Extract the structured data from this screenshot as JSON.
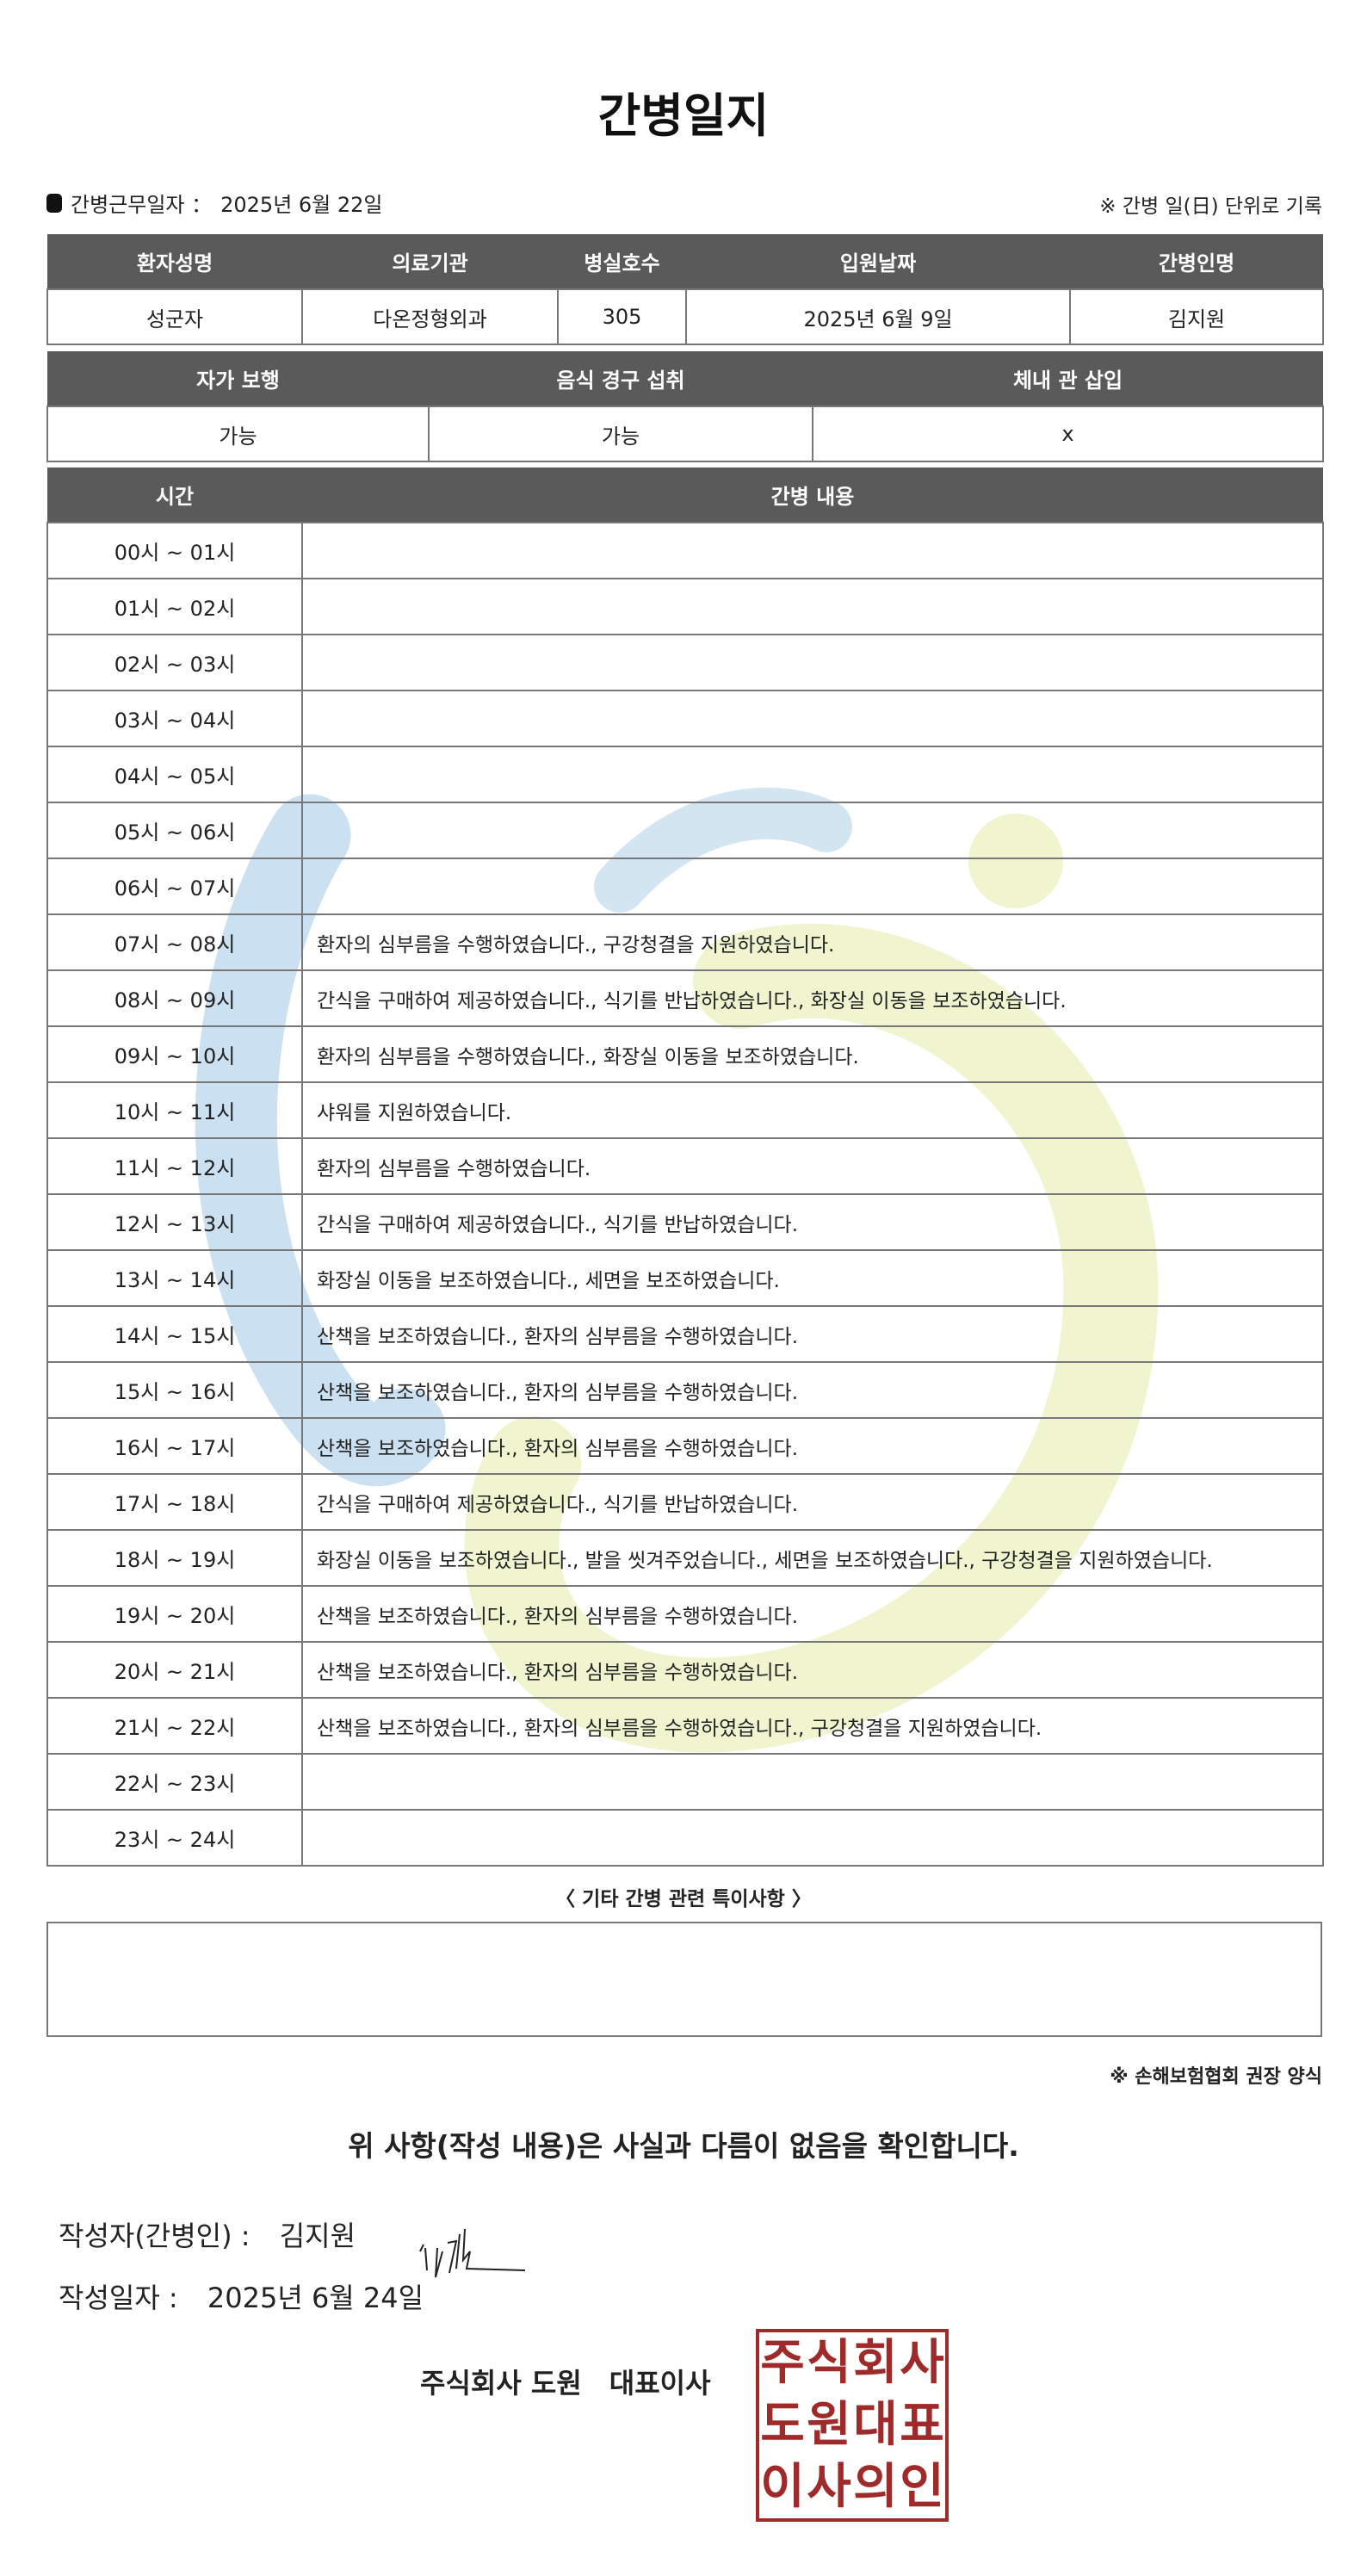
{
  "title": "간병일지",
  "work_date": {
    "label": "간병근무일자 ：",
    "value": "2025년 6월 22일"
  },
  "unit_note": "※ 간병 일(日) 단위로 기록",
  "patient_table": {
    "headers": [
      "환자성명",
      "의료기관",
      "병실호수",
      "입원날짜",
      "간병인명"
    ],
    "values": [
      "성군자",
      "다온정형외과",
      "305",
      "2025년 6월 9일",
      "김지원"
    ]
  },
  "status_table": {
    "headers": [
      "자가 보행",
      "음식 경구 섭취",
      "체내 관 삽입"
    ],
    "values": [
      "가능",
      "가능",
      "x"
    ]
  },
  "care_table": {
    "headers": [
      "시간",
      "간병 내용"
    ],
    "rows": [
      {
        "time": "00시 ~ 01시",
        "content": ""
      },
      {
        "time": "01시 ~ 02시",
        "content": ""
      },
      {
        "time": "02시 ~ 03시",
        "content": ""
      },
      {
        "time": "03시 ~ 04시",
        "content": ""
      },
      {
        "time": "04시 ~ 05시",
        "content": ""
      },
      {
        "time": "05시 ~ 06시",
        "content": ""
      },
      {
        "time": "06시 ~ 07시",
        "content": ""
      },
      {
        "time": "07시 ~ 08시",
        "content": "환자의 심부름을 수행하였습니다., 구강청결을 지원하였습니다."
      },
      {
        "time": "08시 ~ 09시",
        "content": "간식을 구매하여 제공하였습니다., 식기를 반납하였습니다., 화장실 이동을 보조하였습니다."
      },
      {
        "time": "09시 ~ 10시",
        "content": "환자의 심부름을 수행하였습니다., 화장실 이동을 보조하였습니다."
      },
      {
        "time": "10시 ~ 11시",
        "content": "샤워를 지원하였습니다."
      },
      {
        "time": "11시 ~ 12시",
        "content": "환자의 심부름을 수행하였습니다."
      },
      {
        "time": "12시 ~ 13시",
        "content": "간식을 구매하여 제공하였습니다., 식기를 반납하였습니다."
      },
      {
        "time": "13시 ~ 14시",
        "content": "화장실 이동을 보조하였습니다., 세면을 보조하였습니다."
      },
      {
        "time": "14시 ~ 15시",
        "content": "산책을 보조하였습니다., 환자의 심부름을 수행하였습니다."
      },
      {
        "time": "15시 ~ 16시",
        "content": "산책을 보조하였습니다., 환자의 심부름을 수행하였습니다."
      },
      {
        "time": "16시 ~ 17시",
        "content": "산책을 보조하였습니다., 환자의 심부름을 수행하였습니다."
      },
      {
        "time": "17시 ~ 18시",
        "content": "간식을 구매하여 제공하였습니다., 식기를 반납하였습니다."
      },
      {
        "time": "18시 ~ 19시",
        "content": "화장실 이동을 보조하였습니다., 발을 씻겨주었습니다., 세면을 보조하였습니다., 구강청결을 지원하였습니다."
      },
      {
        "time": "19시 ~ 20시",
        "content": "산책을 보조하였습니다., 환자의 심부름을 수행하였습니다."
      },
      {
        "time": "20시 ~ 21시",
        "content": "산책을 보조하였습니다., 환자의 심부름을 수행하였습니다."
      },
      {
        "time": "21시 ~ 22시",
        "content": "산책을 보조하였습니다., 환자의 심부름을 수행하였습니다., 구강청결을 지원하였습니다."
      },
      {
        "time": "22시 ~ 23시",
        "content": ""
      },
      {
        "time": "23시 ~ 24시",
        "content": ""
      }
    ]
  },
  "notes": {
    "label": "〈 기타 간병 관련 특이사항 〉",
    "value": ""
  },
  "association_note": "※ 손해보험협회 권장 양식",
  "confirmation": "위 사항(작성 내용)은 사실과 다름이 없음을 확인합니다.",
  "writer": {
    "label": "작성자(간병인) :",
    "name": "김지원"
  },
  "written_date": {
    "label": "작성일자 :",
    "value": "2025년 6월 24일"
  },
  "company": "주식회사 도원　대표이사",
  "seal_text": [
    "주",
    "식",
    "회",
    "사",
    "도",
    "원",
    "대",
    "표",
    "이",
    "사",
    "의",
    "인"
  ],
  "colors": {
    "header_bg": "#5a5a5a",
    "seal": "#9e2a2a",
    "watermark_blue": "#a9cbe6",
    "watermark_green": "#e6eeb0"
  }
}
